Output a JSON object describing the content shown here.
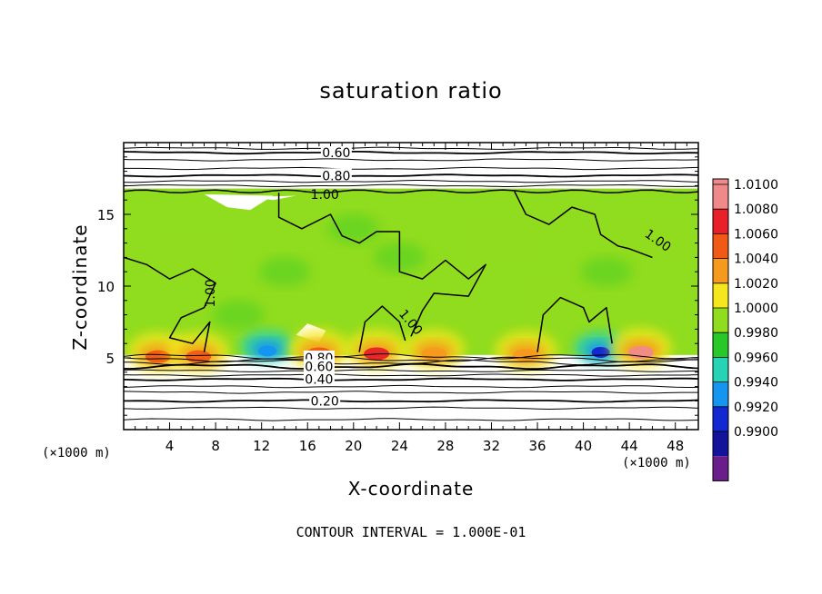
{
  "chart_data": {
    "type": "heatmap",
    "title": "saturation ratio",
    "xlabel": "X-coordinate",
    "ylabel": "Z-coordinate",
    "x_unit": "(×1000 m)",
    "y_unit": "(×1000 m)",
    "xlim": [
      0,
      50
    ],
    "ylim": [
      0,
      20
    ],
    "x_ticks": [
      4,
      8,
      12,
      16,
      20,
      24,
      28,
      32,
      36,
      40,
      44,
      48
    ],
    "y_ticks": [
      5,
      10,
      15
    ],
    "footer": "CONTOUR INTERVAL = 1.000E-01",
    "colorbar": {
      "levels": [
        "1.0100",
        "1.0080",
        "1.0060",
        "1.0040",
        "1.0020",
        "1.0000",
        "0.9980",
        "0.9960",
        "0.9940",
        "0.9920",
        "0.9900"
      ],
      "colors": [
        "#f08a8a",
        "#e8202a",
        "#f05a14",
        "#f59a1e",
        "#f5e61e",
        "#90dc1e",
        "#28c828",
        "#28d2b4",
        "#1496f0",
        "#1428d2",
        "#14149a",
        "#6a1e8c"
      ]
    },
    "cloud_layer": {
      "z_bottom": 5.2,
      "z_top": 16.8,
      "dominant_value": 1.0005
    },
    "contours": [
      {
        "label": "0.60",
        "z": 19.3
      },
      {
        "label": "0.80",
        "z": 17.7
      },
      {
        "label": "1.00",
        "z": 16.4
      },
      {
        "label": "1.00",
        "z": 13.2
      },
      {
        "label": "1.00",
        "z": 9.5
      },
      {
        "label": "1.00",
        "z": 7.5
      },
      {
        "label": "0.80",
        "z": 5.0
      },
      {
        "label": "0.60",
        "z": 4.4
      },
      {
        "label": "0.40",
        "z": 3.5
      },
      {
        "label": "0.20",
        "z": 2.0
      }
    ],
    "hotspots": [
      {
        "x": 3,
        "z": 5.4,
        "value": 1.006
      },
      {
        "x": 6.5,
        "z": 5.4,
        "value": 1.006
      },
      {
        "x": 12.5,
        "z": 5.8,
        "value": 0.994
      },
      {
        "x": 17,
        "z": 5.6,
        "value": 1.006
      },
      {
        "x": 22,
        "z": 5.6,
        "value": 1.008
      },
      {
        "x": 27,
        "z": 5.6,
        "value": 1.004
      },
      {
        "x": 35,
        "z": 5.5,
        "value": 1.004
      },
      {
        "x": 41.5,
        "z": 5.7,
        "value": 0.993
      },
      {
        "x": 45,
        "z": 5.7,
        "value": 1.01
      }
    ]
  }
}
